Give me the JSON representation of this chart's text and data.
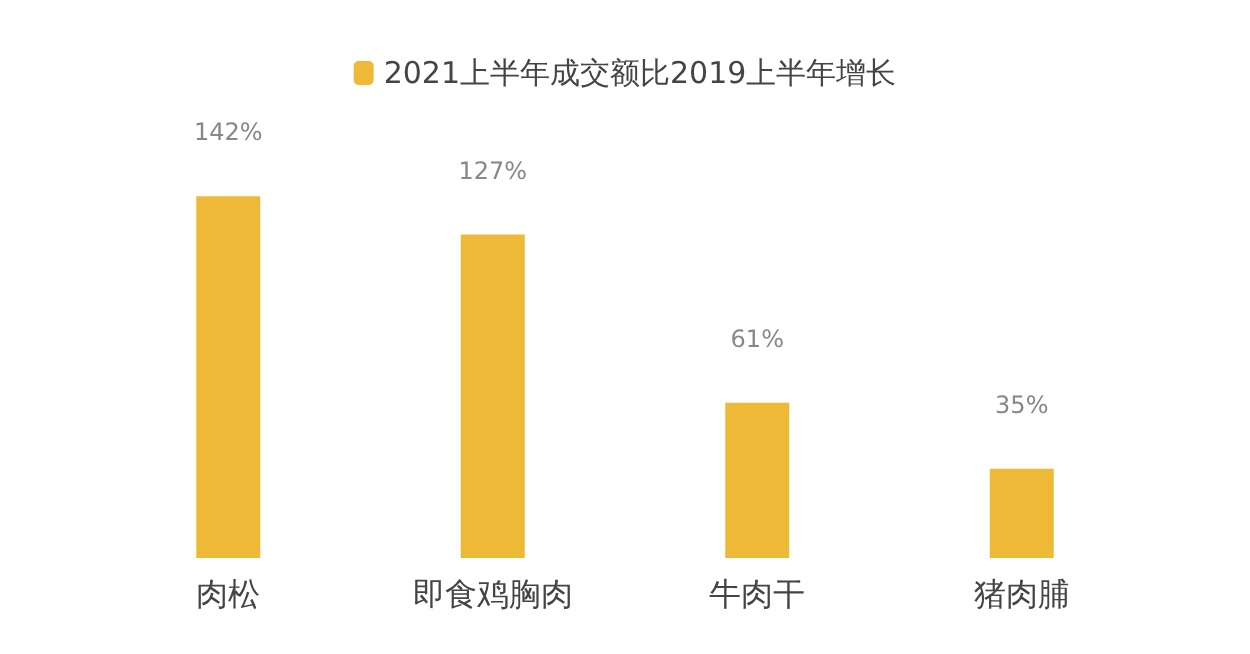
{
  "chart_data": {
    "type": "bar",
    "categories": [
      "肉松",
      "即食鸡胸肉",
      "牛肉干",
      "猪肉脯"
    ],
    "series": [
      {
        "name": "2021上半年成交额比2019上半年增长",
        "color": "#efb938",
        "values": [
          142,
          127,
          61,
          35
        ],
        "value_labels": [
          "142%",
          "127%",
          "61%",
          "35%"
        ]
      }
    ],
    "legend": "top"
  }
}
